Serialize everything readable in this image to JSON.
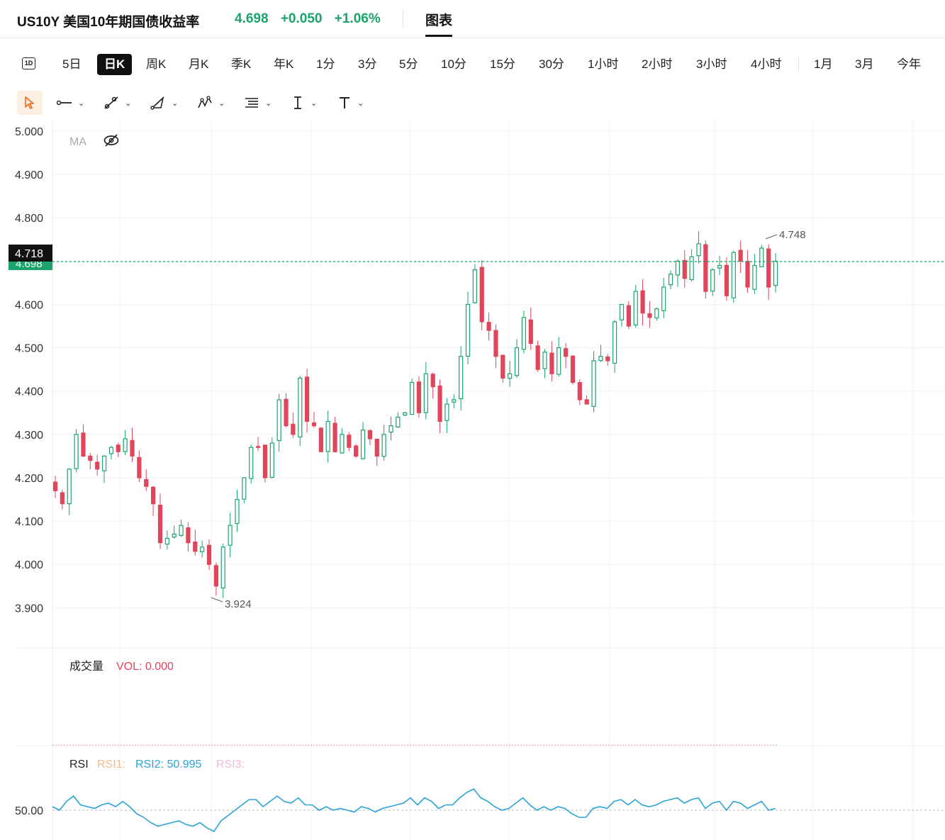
{
  "header": {
    "symbol": "US10Y 美国10年期国债收益率",
    "last": "4.698",
    "change": "+0.050",
    "change_pct": "+1.06%",
    "tab_chart": "图表",
    "up_color": "#1aa36a",
    "down_color": "#e0455a"
  },
  "periods": {
    "intraday_icon": "1D",
    "items": [
      "5日",
      "日K",
      "周K",
      "月K",
      "季K",
      "年K",
      "1分",
      "3分",
      "5分",
      "10分",
      "15分",
      "30分",
      "1小时",
      "2小时",
      "3小时",
      "4小时",
      "1月",
      "3月",
      "今年"
    ],
    "selected": "日K"
  },
  "toolbar": {
    "tools": [
      "cursor-icon",
      "line-tool-icon",
      "ray-tool-icon",
      "triangle-tool-icon",
      "pattern-tool-icon",
      "fib-tool-icon",
      "text-cursor-tool-icon",
      "text-tool-icon"
    ]
  },
  "price_axis": {
    "ticks": [
      "5.000",
      "4.900",
      "4.800",
      "4.700",
      "4.600",
      "4.500",
      "4.400",
      "4.300",
      "4.200",
      "4.100",
      "4.000",
      "3.900"
    ],
    "current_label": "4.718",
    "last_label": "4.698",
    "high_annotation": "4.748",
    "low_annotation": "3.924"
  },
  "indicators": {
    "ma_label": "MA",
    "volume_title": "成交量",
    "volume_value": "VOL: 0.000",
    "rsi_title": "RSI",
    "rsi1": "RSI1:",
    "rsi2": "RSI2: 50.995",
    "rsi3": "RSI3:",
    "rsi_tick": "50.00"
  },
  "chart_data": {
    "type": "candlestick",
    "ylim": [
      3.85,
      5.05
    ],
    "candles_close": [
      4.17,
      4.14,
      4.22,
      4.3,
      4.25,
      4.24,
      4.22,
      4.25,
      4.27,
      4.26,
      4.29,
      4.25,
      4.2,
      4.18,
      4.14,
      4.05,
      4.06,
      4.07,
      4.09,
      4.05,
      4.03,
      4.04,
      4.0,
      3.95,
      4.04,
      4.09,
      4.15,
      4.2,
      4.27,
      4.27,
      4.2,
      4.28,
      4.38,
      4.32,
      4.3,
      4.43,
      4.33,
      4.32,
      4.26,
      4.33,
      4.26,
      4.3,
      4.27,
      4.25,
      4.31,
      4.29,
      4.25,
      4.3,
      4.32,
      4.34,
      4.35,
      4.42,
      4.35,
      4.44,
      4.41,
      4.33,
      4.37,
      4.38,
      4.48,
      4.6,
      4.68,
      4.56,
      4.54,
      4.48,
      4.43,
      4.44,
      4.5,
      4.57,
      4.51,
      4.45,
      4.49,
      4.44,
      4.5,
      4.48,
      4.42,
      4.38,
      4.37,
      4.47,
      4.48,
      4.47,
      4.56,
      4.6,
      4.55,
      4.63,
      4.58,
      4.57,
      4.59,
      4.64,
      4.67,
      4.7,
      4.66,
      4.71,
      4.74,
      4.63,
      4.68,
      4.69,
      4.62,
      4.72,
      4.7,
      4.64,
      4.69,
      4.73,
      4.64,
      4.7
    ],
    "rsi2": [
      52,
      50,
      55,
      58,
      53,
      52,
      51,
      53,
      54,
      52,
      55,
      52,
      48,
      46,
      43,
      41,
      42,
      43,
      44,
      42,
      41,
      43,
      40,
      38,
      44,
      47,
      50,
      53,
      56,
      56,
      52,
      55,
      58,
      55,
      54,
      57,
      53,
      53,
      50,
      52,
      50,
      51,
      50,
      49,
      52,
      51,
      49,
      51,
      52,
      53,
      54,
      57,
      53,
      57,
      55,
      51,
      53,
      53,
      57,
      60,
      62,
      57,
      55,
      52,
      50,
      51,
      54,
      57,
      53,
      50,
      52,
      50,
      52,
      51,
      48,
      46,
      46,
      51,
      52,
      51,
      55,
      56,
      53,
      56,
      53,
      52,
      53,
      55,
      56,
      57,
      54,
      56,
      57,
      51,
      54,
      55,
      50,
      55,
      54,
      51,
      53,
      55,
      50,
      51
    ],
    "rsi_level": 50
  }
}
